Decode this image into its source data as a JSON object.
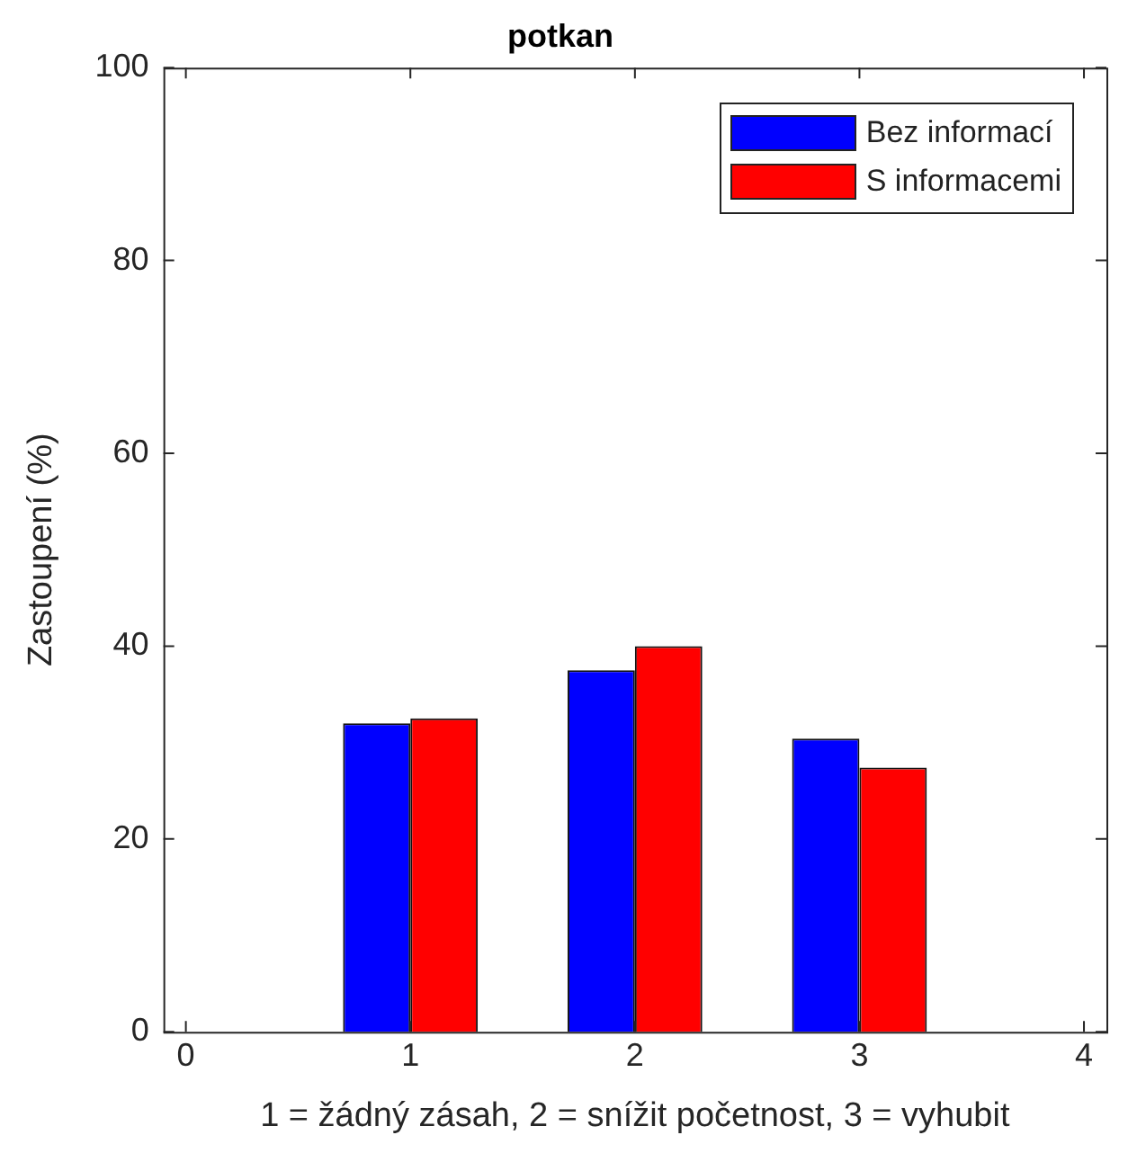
{
  "chart_data": {
    "type": "bar",
    "title": "potkan",
    "xlabel": "1 = žádný zásah, 2 = snížit početnost, 3 = vyhubit",
    "ylabel": "Zastoupení (%)",
    "x": [
      1,
      2,
      3
    ],
    "series": [
      {
        "name": "Bez informací",
        "color": "#0000ff",
        "values": [
          32.0,
          37.5,
          30.4
        ]
      },
      {
        "name": "S informacemi",
        "color": "#ff0000",
        "values": [
          32.5,
          40.0,
          27.4
        ]
      }
    ],
    "xlim": [
      -0.1,
      4.1
    ],
    "xticks": [
      0,
      1,
      2,
      3,
      4
    ],
    "ylim": [
      0,
      100
    ],
    "yticks": [
      0,
      20,
      40,
      60,
      80,
      100
    ],
    "grid": false,
    "legend": "top right"
  }
}
